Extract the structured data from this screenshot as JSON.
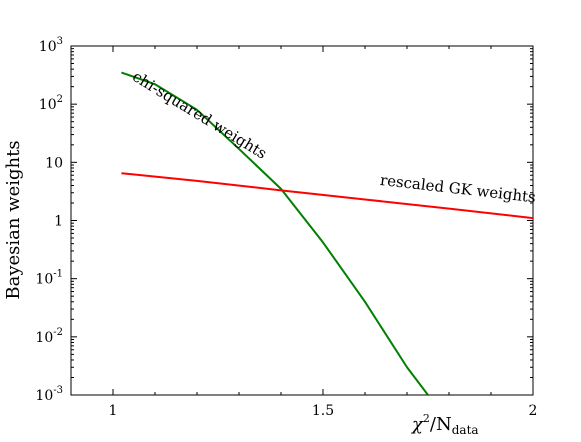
{
  "chart_data": {
    "type": "line",
    "title": "",
    "xlabel": {
      "symbol": "χ",
      "power": "2",
      "rest": "/N",
      "sub": "data"
    },
    "ylabel": "Bayesian weights",
    "xlim": [
      0.9,
      2.0
    ],
    "ylim": [
      0.001,
      1000
    ],
    "yscale": "log",
    "grid": false,
    "x_ticks": [
      {
        "value": 1.0,
        "label": "1"
      },
      {
        "value": 1.5,
        "label": "1.5"
      },
      {
        "value": 2.0,
        "label": "2"
      }
    ],
    "y_ticks": [
      {
        "value": 1000,
        "base": "10",
        "exp": "3"
      },
      {
        "value": 100,
        "base": "10",
        "exp": "2"
      },
      {
        "value": 10,
        "base": "10",
        "exp": ""
      },
      {
        "value": 1,
        "base": "1",
        "exp": ""
      },
      {
        "value": 0.1,
        "base": "10",
        "exp": "-1"
      },
      {
        "value": 0.01,
        "base": "10",
        "exp": "-2"
      },
      {
        "value": 0.001,
        "base": "10",
        "exp": "-3"
      }
    ],
    "series": [
      {
        "name": "chi-squared weights",
        "color": "#008000",
        "x": [
          1.02,
          1.1,
          1.2,
          1.3,
          1.4,
          1.5,
          1.6,
          1.7,
          1.75
        ],
        "y": [
          350,
          220,
          80,
          17,
          3.5,
          0.42,
          0.04,
          0.003,
          0.001
        ]
      },
      {
        "name": "rescaled GK weights",
        "color": "#ff0000",
        "x": [
          1.02,
          1.2,
          1.4,
          1.6,
          1.8,
          2.0
        ],
        "y": [
          6.5,
          4.8,
          3.3,
          2.3,
          1.6,
          1.1
        ]
      }
    ],
    "annotations": [
      {
        "text": "chi-squared weights",
        "series": "chi-squared weights",
        "x": 1.2,
        "y": 55
      },
      {
        "text": "rescaled GK weights",
        "series": "rescaled GK weights",
        "x": 1.82,
        "y": 2.9
      }
    ]
  }
}
